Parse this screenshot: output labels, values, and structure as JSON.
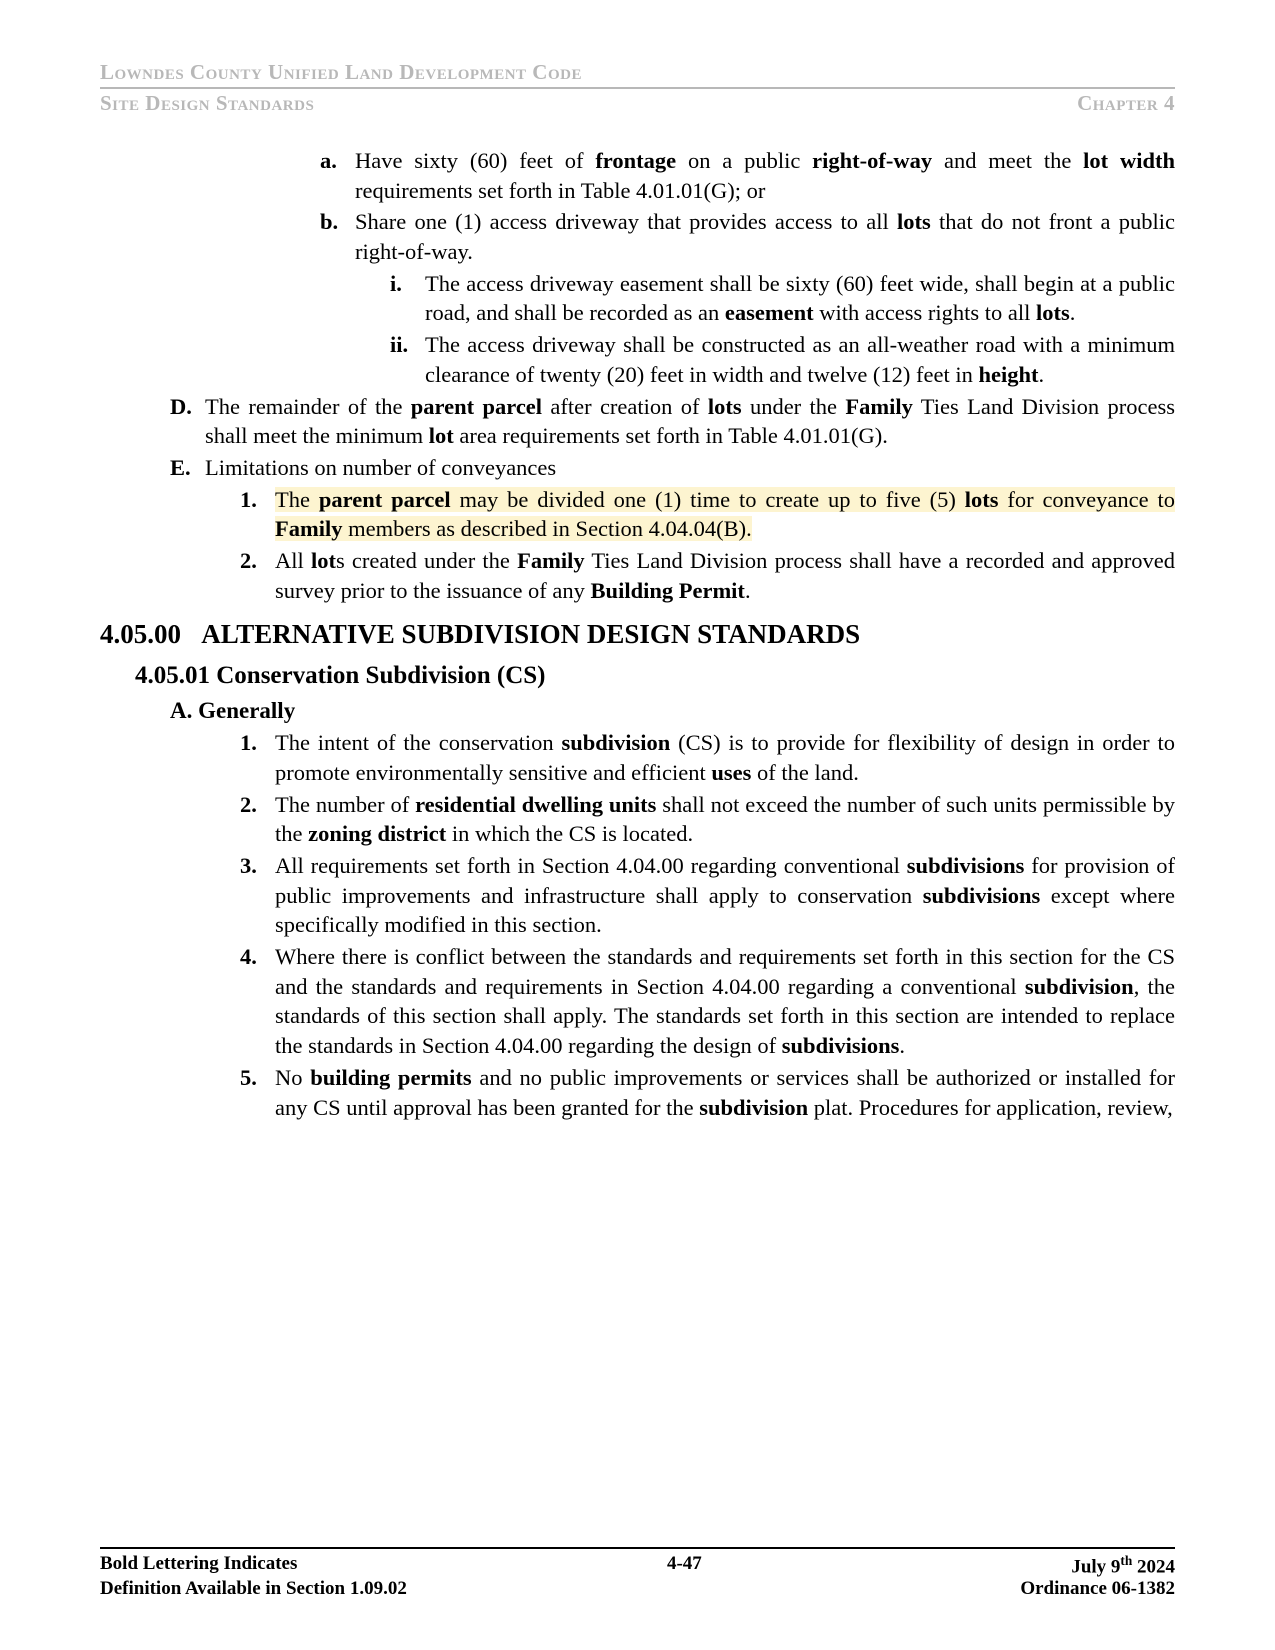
{
  "header": {
    "title": "Lowndes County Unified Land Development Code",
    "left": "Site Design Standards",
    "right": "Chapter 4"
  },
  "items": {
    "a_text": "Have sixty (60) feet of <b>frontage</b> on a public <b>right-of-way</b> and meet the <b>lot width</b> requirements set forth in Table 4.01.01(G); or",
    "b_text": "Share one (1) access driveway that provides access to all <b>lots</b> that do not front a public right-of-way.",
    "i_text": "The access driveway easement shall be sixty (60) feet wide, shall begin at a public road, and shall be recorded as an <b>easement</b> with access rights to all <b>lots</b>.",
    "ii_text": "The access driveway shall be constructed as an all-weather road with a minimum clearance of twenty (20) feet in width and twelve (12) feet in <b>height</b>.",
    "D_text": "The remainder of the <b>parent parcel</b> after creation of <b>lots</b> under the <b>Family</b> Ties Land Division process shall meet the minimum <b>lot</b> area requirements set forth in Table 4.01.01(G).",
    "E_text": "Limitations on number of conveyances",
    "E1_text": "The <b>parent parcel</b> may be divided one (1) time to create up to five (5) <b>lots</b> for conveyance to <b>Family</b> members as described in Section 4.04.04(B).",
    "E2_text": "All <b>lot</b>s created under the <b>Family</b> Ties Land Division process shall have a recorded and approved survey prior to the issuance of any <b>Building Permit</b>."
  },
  "section": {
    "num": "4.05.00",
    "title": "ALTERNATIVE SUBDIVISION DESIGN STANDARDS",
    "sub_num": "4.05.01",
    "sub_title": "Conservation Subdivision (CS)",
    "A": "A.  Generally",
    "A1": "The intent of the conservation <b>subdivision</b> (CS) is to provide for flexibility of design in order to promote environmentally sensitive and efficient <b>uses</b> of the land.",
    "A2": "The number of <b>residential dwelling units</b> shall not exceed the number of such units permissible by the <b>zoning district</b> in which the CS is located.",
    "A3": "All requirements set forth in Section 4.04.00 regarding conventional <b>subdivisions</b> for provision of public improvements and infrastructure shall apply to conservation <b>subdivisions</b> except where specifically modified in this section.",
    "A4": "Where there is conflict between the standards and requirements set forth in this section for the CS and the standards and requirements in Section 4.04.00 regarding a conventional <b>subdivision</b>, the standards of this section shall apply.  The standards set forth in this section are intended to replace the standards in Section 4.04.00 regarding the design of <b>subdivisions</b>.",
    "A5": "No <b>building permits</b> and no public improvements or services shall be authorized or installed for any CS until approval has been granted for the <b>subdivision</b> plat.  Procedures for application, review,"
  },
  "footer": {
    "left1": "Bold Lettering Indicates",
    "left2": "Definition Available in Section 1.09.02",
    "center": "4-47",
    "right1": "July 9<sup>th</sup> 2024",
    "right2": "Ordinance 06-1382"
  }
}
